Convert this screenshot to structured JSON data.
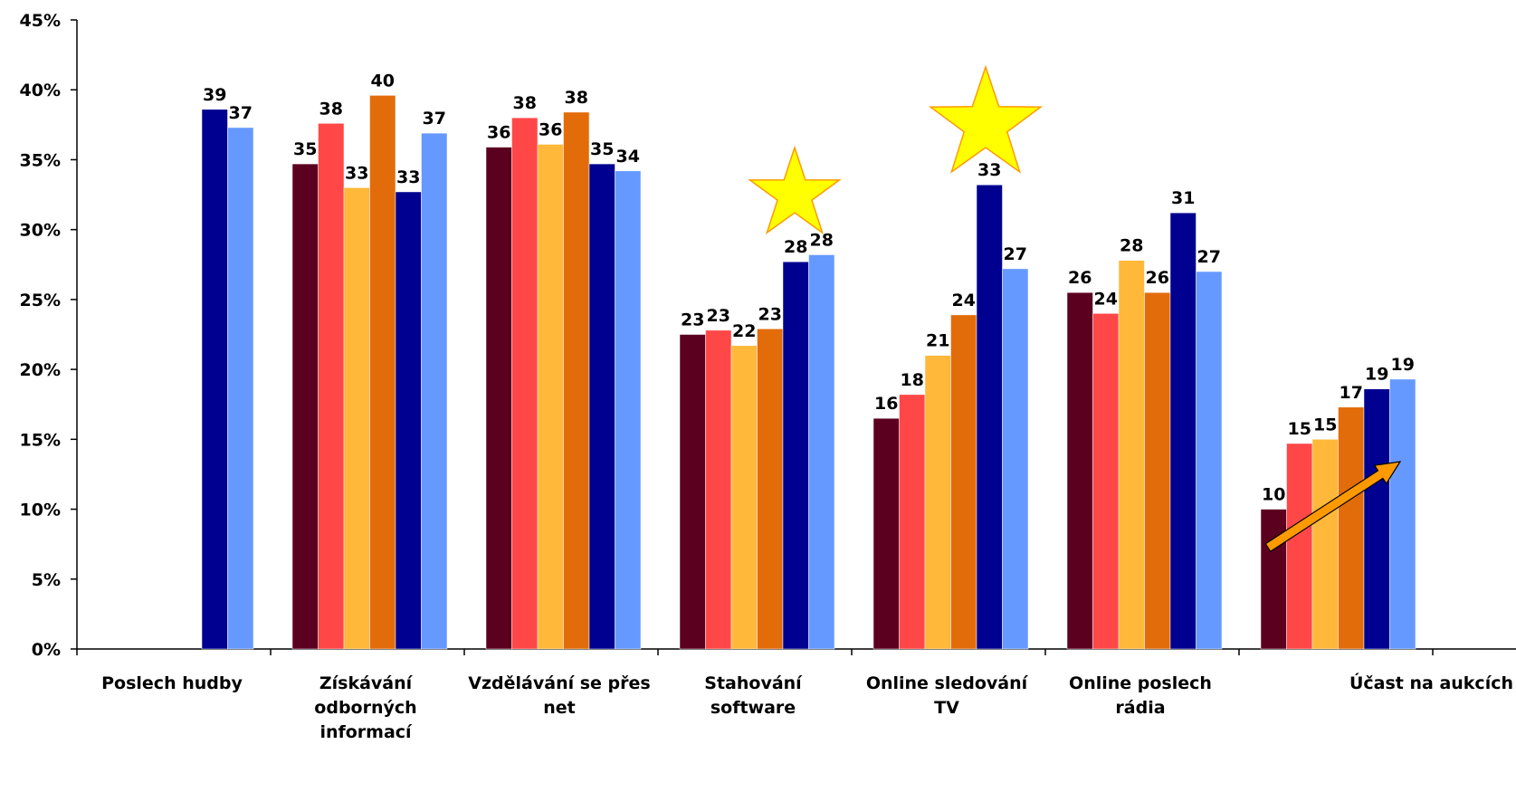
{
  "chart_data": {
    "type": "bar",
    "title": "",
    "xlabel": "",
    "ylabel": "",
    "ylim": [
      0,
      45
    ],
    "y_tick_step": 5,
    "y_tick_labels": [
      "0%",
      "5%",
      "10%",
      "15%",
      "20%",
      "25%",
      "30%",
      "35%",
      "40%",
      "45%"
    ],
    "grid": false,
    "legend": "none",
    "categories": [
      [
        "Poslech hudby"
      ],
      [
        "Získávání",
        "odborných",
        "informací"
      ],
      [
        "Vzdělávání se přes",
        "net"
      ],
      [
        "Stahování",
        "software"
      ],
      [
        "Online sledování",
        "TV"
      ],
      [
        "Online poslech",
        "rádia"
      ],
      [
        "Účast na aukcích"
      ]
    ],
    "series": [
      {
        "color": "#5c0020",
        "values": [
          null,
          34.7,
          35.9,
          22.5,
          16.5,
          25.5,
          10.0
        ],
        "labels": [
          null,
          "35",
          "36",
          "23",
          "16",
          "26",
          "10"
        ]
      },
      {
        "color": "#ff4747",
        "values": [
          null,
          37.6,
          38.0,
          22.8,
          18.2,
          24.0,
          14.7
        ],
        "labels": [
          null,
          "38",
          "38",
          "23",
          "18",
          "24",
          "15"
        ]
      },
      {
        "color": "#ffb83a",
        "values": [
          null,
          33.0,
          36.1,
          21.7,
          21.0,
          27.8,
          15.0
        ],
        "labels": [
          null,
          "33",
          "36",
          "22",
          "21",
          "28",
          "15"
        ]
      },
      {
        "color": "#e36c0a",
        "values": [
          null,
          39.6,
          38.4,
          22.9,
          23.9,
          25.5,
          17.3
        ],
        "labels": [
          null,
          "40",
          "38",
          "23",
          "24",
          "26",
          "17"
        ]
      },
      {
        "color": "#000090",
        "values": [
          38.6,
          32.7,
          34.7,
          27.7,
          33.2,
          31.2,
          18.6
        ],
        "labels": [
          "39",
          "33",
          "35",
          "28",
          "33",
          "31",
          "19"
        ]
      },
      {
        "color": "#6699ff",
        "values": [
          37.3,
          36.9,
          34.2,
          28.2,
          27.2,
          27.0,
          19.3
        ],
        "labels": [
          "37",
          "37",
          "34",
          "28",
          "27",
          "27",
          "19"
        ]
      }
    ],
    "annotations": [
      {
        "type": "star",
        "category_index": 3,
        "color": "#ffff00",
        "outline": "#ff9900"
      },
      {
        "type": "star",
        "category_index": 4,
        "color": "#ffff00",
        "outline": "#ff9900"
      },
      {
        "type": "trend-arrow",
        "category_index": 6,
        "color": "#ff9900",
        "outline": "#000000"
      }
    ]
  }
}
